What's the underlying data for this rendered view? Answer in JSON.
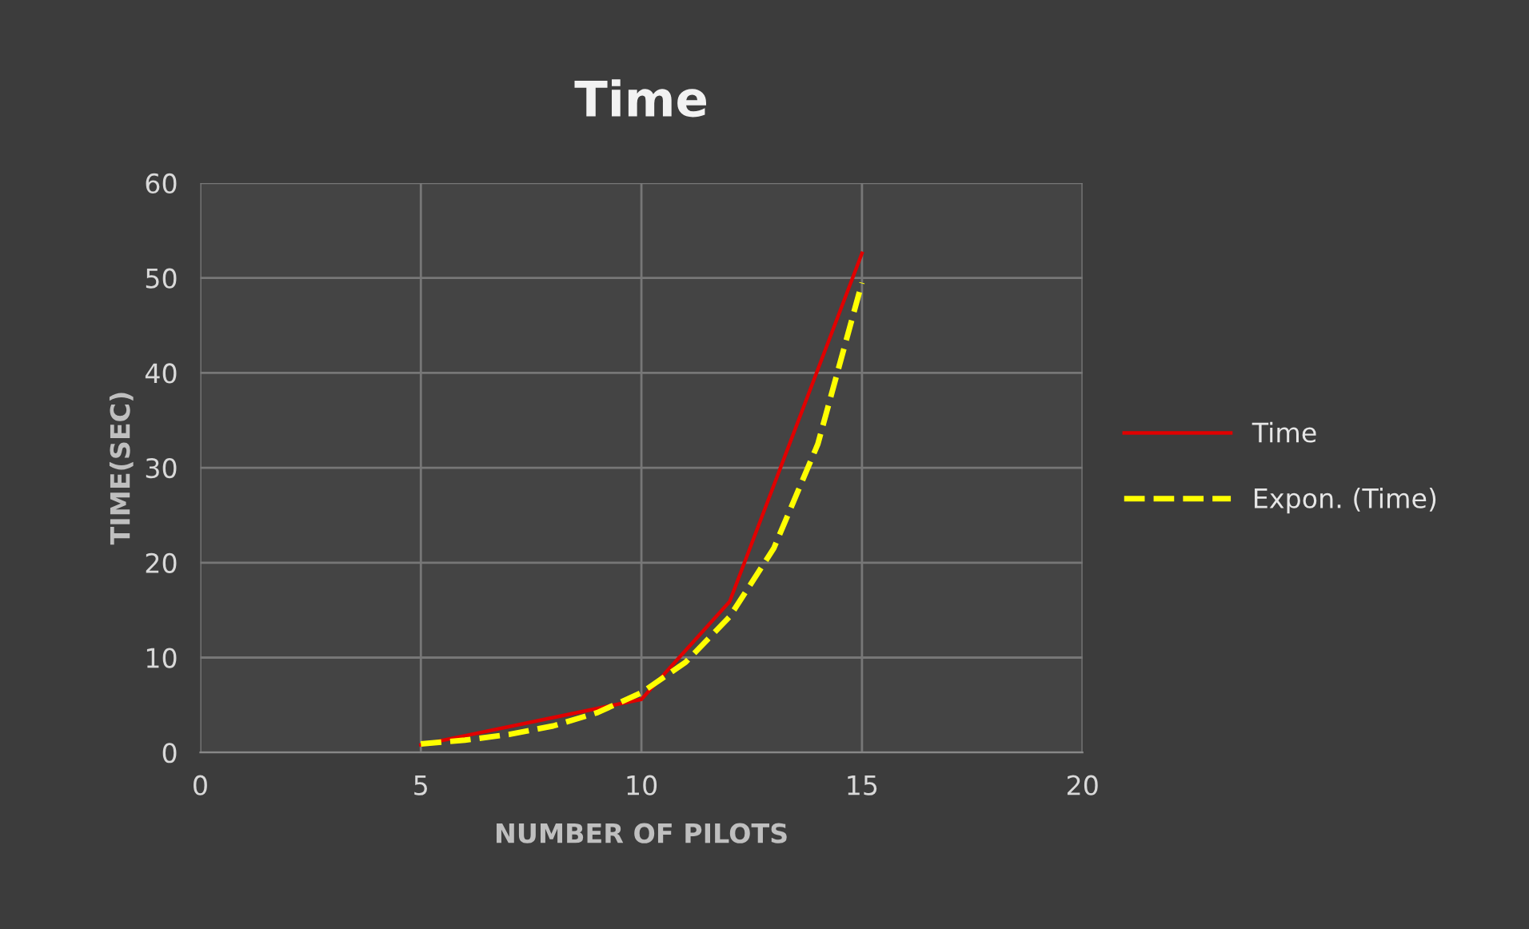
{
  "chart_data": {
    "type": "line",
    "title": "Time",
    "xlabel": "NUMBER OF PILOTS",
    "ylabel": "TIME(SEC)",
    "series": [
      {
        "name": "Time",
        "color": "#e00000",
        "x": [
          5,
          10,
          12,
          15
        ],
        "values": [
          0.8,
          5.6,
          15.9,
          52.6
        ],
        "line_style": "solid"
      },
      {
        "name": "Expon. (Time)",
        "color": "#ffff00",
        "x": [
          5,
          6,
          7,
          8,
          9,
          10,
          11,
          12,
          13,
          14,
          15
        ],
        "values": [
          0.9,
          1.3,
          1.9,
          2.8,
          4.2,
          6.3,
          9.5,
          14.3,
          21.5,
          32.5,
          49.5
        ],
        "line_style": "dashed"
      }
    ],
    "xlim": [
      0,
      20
    ],
    "xticks": [
      0,
      5,
      10,
      15,
      20
    ],
    "ylim": [
      0,
      60
    ],
    "yticks": [
      0,
      10,
      20,
      30,
      40,
      50,
      60
    ],
    "grid": true,
    "legend": "right",
    "marker": "none"
  }
}
